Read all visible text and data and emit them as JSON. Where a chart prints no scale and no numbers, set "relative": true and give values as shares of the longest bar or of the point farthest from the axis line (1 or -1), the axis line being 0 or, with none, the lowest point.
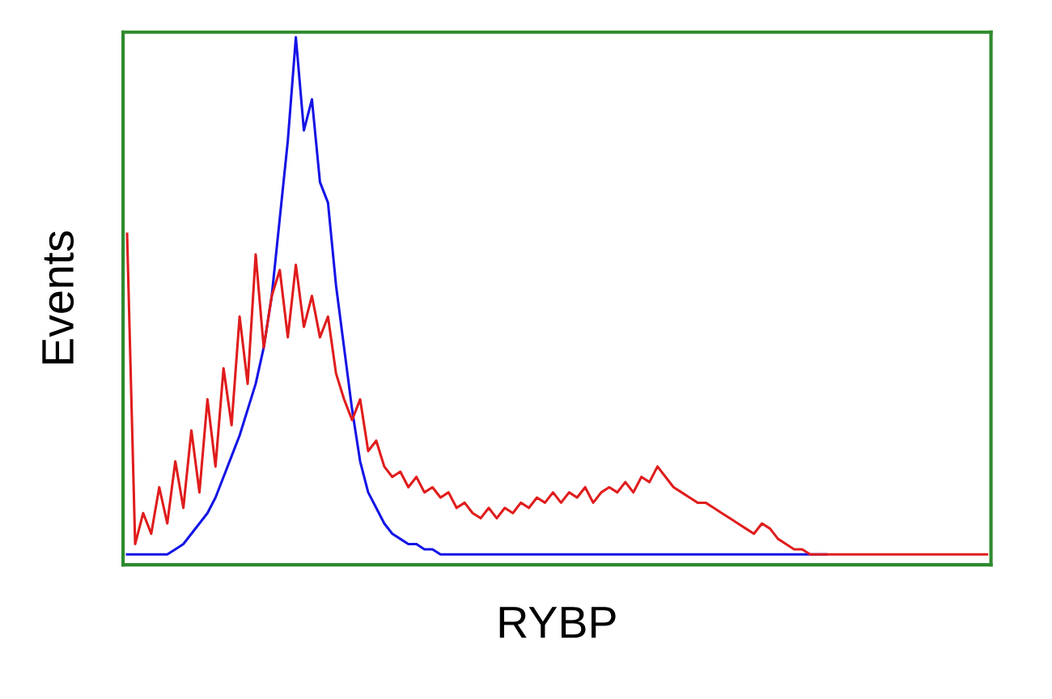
{
  "chart_data": {
    "type": "line",
    "relative": true,
    "xlabel": "RYBP",
    "ylabel": "Events",
    "legend": false,
    "tick_labels": false,
    "categories": [
      null,
      null,
      null,
      null,
      null,
      null,
      null,
      null,
      null,
      null,
      null,
      null,
      null,
      null,
      null,
      null,
      null,
      null,
      null,
      null,
      null,
      null,
      null,
      null,
      null,
      null,
      null,
      null,
      null,
      null,
      null,
      null,
      null,
      null,
      null,
      null,
      null,
      null,
      null,
      null,
      null,
      null,
      null,
      null,
      null,
      null,
      null,
      null,
      null,
      null,
      null,
      null,
      null,
      null,
      null,
      null,
      null,
      null,
      null,
      null,
      null,
      null,
      null,
      null,
      null,
      null,
      null,
      null,
      null,
      null,
      null,
      null,
      null,
      null,
      null,
      null,
      null,
      null,
      null,
      null,
      null,
      null,
      null,
      null,
      null,
      null,
      null,
      null,
      null,
      null,
      null,
      null,
      null,
      null,
      null,
      null,
      null,
      null,
      null,
      null,
      null,
      null,
      null,
      null,
      null,
      null,
      null,
      null
    ],
    "series": [
      {
        "color": "#1414e6",
        "values": [
          0,
          0,
          0,
          0,
          0,
          0,
          0.01,
          0.02,
          0.04,
          0.06,
          0.08,
          0.11,
          0.15,
          0.19,
          0.23,
          0.28,
          0.33,
          0.4,
          0.5,
          0.65,
          0.8,
          1.0,
          0.82,
          0.88,
          0.72,
          0.68,
          0.52,
          0.4,
          0.28,
          0.18,
          0.12,
          0.09,
          0.06,
          0.04,
          0.03,
          0.02,
          0.02,
          0.01,
          0.01,
          0,
          0,
          0,
          0,
          0,
          0,
          0,
          0,
          0,
          0,
          0,
          0,
          0,
          0,
          0,
          0,
          0,
          0,
          0,
          0,
          0,
          0,
          0,
          0,
          0,
          0,
          0,
          0,
          0,
          0,
          0,
          0,
          0,
          0,
          0,
          0,
          0,
          0,
          0,
          0,
          0,
          0,
          0,
          0,
          0,
          0,
          0,
          0,
          0,
          null,
          null,
          null,
          null,
          null,
          null,
          null,
          null,
          null,
          null,
          null,
          null,
          null,
          null,
          null,
          null,
          null,
          null,
          null,
          null
        ]
      },
      {
        "color": "#e01c1c",
        "values": [
          0.62,
          0.02,
          0.08,
          0.04,
          0.13,
          0.06,
          0.18,
          0.09,
          0.24,
          0.12,
          0.3,
          0.17,
          0.36,
          0.25,
          0.46,
          0.33,
          0.58,
          0.4,
          0.5,
          0.55,
          0.42,
          0.56,
          0.44,
          0.5,
          0.42,
          0.46,
          0.35,
          0.3,
          0.26,
          0.3,
          0.2,
          0.22,
          0.17,
          0.15,
          0.16,
          0.13,
          0.15,
          0.12,
          0.13,
          0.11,
          0.12,
          0.09,
          0.1,
          0.08,
          0.07,
          0.09,
          0.07,
          0.09,
          0.08,
          0.1,
          0.09,
          0.11,
          0.1,
          0.12,
          0.1,
          0.12,
          0.11,
          0.13,
          0.1,
          0.12,
          0.13,
          0.12,
          0.14,
          0.12,
          0.15,
          0.14,
          0.17,
          0.15,
          0.13,
          0.12,
          0.11,
          0.1,
          0.1,
          0.09,
          0.08,
          0.07,
          0.06,
          0.05,
          0.04,
          0.06,
          0.05,
          0.03,
          0.02,
          0.01,
          0.01,
          0,
          0,
          0,
          0,
          0,
          0,
          0,
          0,
          0,
          0,
          0,
          0,
          0,
          0,
          0,
          0,
          0,
          0,
          0,
          0,
          0,
          0,
          0
        ]
      }
    ]
  }
}
